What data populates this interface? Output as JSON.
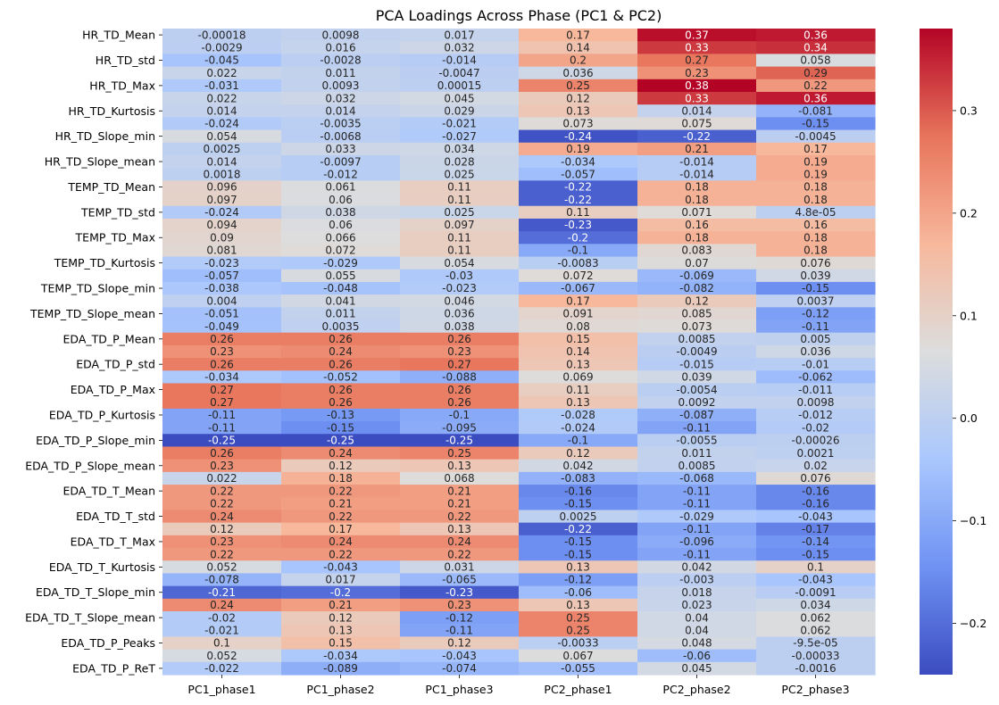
{
  "chart_data": {
    "type": "heatmap",
    "title": "PCA Loadings Across Phase (PC1 & PC2)",
    "xlabel": "",
    "ylabel": "",
    "columns": [
      "PC1_phase1",
      "PC1_phase2",
      "PC1_phase3",
      "PC2_phase1",
      "PC2_phase2",
      "PC2_phase3"
    ],
    "row_tick_labels": [
      "HR_TD_Mean",
      "HR_TD_std",
      "HR_TD_Max",
      "HR_TD_Kurtosis",
      "HR_TD_Slope_min",
      "HR_TD_Slope_mean",
      "TEMP_TD_Mean",
      "TEMP_TD_std",
      "TEMP_TD_Max",
      "TEMP_TD_Kurtosis",
      "TEMP_TD_Slope_min",
      "TEMP_TD_Slope_mean",
      "EDA_TD_P_Mean",
      "EDA_TD_P_std",
      "EDA_TD_P_Max",
      "EDA_TD_P_Kurtosis",
      "EDA_TD_P_Slope_min",
      "EDA_TD_P_Slope_mean",
      "EDA_TD_T_Mean",
      "EDA_TD_T_std",
      "EDA_TD_T_Max",
      "EDA_TD_T_Kurtosis",
      "EDA_TD_T_Slope_min",
      "EDA_TD_T_Slope_mean",
      "EDA_TD_P_Peaks",
      "EDA_TD_P_ReT"
    ],
    "values": [
      [
        -0.00018,
        0.0098,
        0.017,
        0.17,
        0.37,
        0.36
      ],
      [
        -0.0029,
        0.016,
        0.032,
        0.14,
        0.33,
        0.34
      ],
      [
        -0.045,
        -0.0028,
        -0.014,
        0.2,
        0.27,
        0.058
      ],
      [
        0.022,
        0.011,
        -0.0047,
        0.036,
        0.23,
        0.29
      ],
      [
        -0.031,
        0.0093,
        0.00015,
        0.25,
        0.38,
        0.22
      ],
      [
        0.022,
        0.032,
        0.045,
        0.12,
        0.33,
        0.36
      ],
      [
        0.014,
        0.014,
        0.029,
        0.13,
        0.014,
        -0.081
      ],
      [
        -0.024,
        -0.0035,
        -0.021,
        0.073,
        0.075,
        -0.15
      ],
      [
        0.054,
        -0.0068,
        -0.027,
        -0.24,
        -0.22,
        -0.0045
      ],
      [
        0.0025,
        0.033,
        0.034,
        0.19,
        0.21,
        0.17
      ],
      [
        0.014,
        -0.0097,
        0.028,
        -0.034,
        -0.014,
        0.19
      ],
      [
        0.0018,
        -0.012,
        0.025,
        -0.057,
        -0.014,
        0.19
      ],
      [
        0.096,
        0.061,
        0.11,
        -0.22,
        0.18,
        0.18
      ],
      [
        0.097,
        0.06,
        0.11,
        -0.22,
        0.18,
        0.18
      ],
      [
        -0.024,
        0.038,
        0.025,
        0.11,
        0.071,
        4.8e-05
      ],
      [
        0.094,
        0.06,
        0.097,
        -0.23,
        0.16,
        0.16
      ],
      [
        0.09,
        0.066,
        0.11,
        -0.2,
        0.18,
        0.18
      ],
      [
        0.081,
        0.072,
        0.11,
        -0.1,
        0.083,
        0.18
      ],
      [
        -0.023,
        -0.029,
        0.054,
        -0.0083,
        0.07,
        0.076
      ],
      [
        -0.057,
        0.055,
        -0.03,
        0.072,
        -0.069,
        0.039
      ],
      [
        -0.038,
        -0.048,
        -0.023,
        -0.067,
        -0.082,
        -0.15
      ],
      [
        0.004,
        0.041,
        0.046,
        0.17,
        0.12,
        0.0037
      ],
      [
        -0.051,
        0.011,
        0.036,
        0.091,
        0.085,
        -0.12
      ],
      [
        -0.049,
        0.0035,
        0.038,
        0.08,
        0.073,
        -0.11
      ],
      [
        0.26,
        0.26,
        0.26,
        0.15,
        0.0085,
        0.005
      ],
      [
        0.23,
        0.24,
        0.23,
        0.14,
        -0.0049,
        0.036
      ],
      [
        0.26,
        0.26,
        0.27,
        0.13,
        -0.015,
        -0.01
      ],
      [
        -0.034,
        -0.052,
        -0.088,
        0.069,
        0.039,
        -0.062
      ],
      [
        0.27,
        0.26,
        0.26,
        0.11,
        -0.0054,
        -0.011
      ],
      [
        0.27,
        0.26,
        0.26,
        0.13,
        0.0092,
        0.0098
      ],
      [
        -0.11,
        -0.13,
        -0.1,
        -0.028,
        -0.087,
        -0.012
      ],
      [
        -0.11,
        -0.15,
        -0.095,
        -0.024,
        -0.11,
        -0.02
      ],
      [
        -0.25,
        -0.25,
        -0.25,
        -0.1,
        -0.0055,
        -0.00026
      ],
      [
        0.26,
        0.24,
        0.25,
        0.12,
        0.011,
        0.0021
      ],
      [
        0.23,
        0.12,
        0.13,
        0.042,
        0.0085,
        0.02
      ],
      [
        0.022,
        0.18,
        0.068,
        -0.083,
        -0.068,
        0.076
      ],
      [
        0.22,
        0.22,
        0.21,
        -0.16,
        -0.11,
        -0.16
      ],
      [
        0.22,
        0.21,
        0.21,
        -0.15,
        -0.11,
        -0.16
      ],
      [
        0.24,
        0.22,
        0.22,
        0.0025,
        -0.029,
        -0.043
      ],
      [
        0.12,
        0.17,
        0.13,
        -0.22,
        -0.11,
        -0.17
      ],
      [
        0.23,
        0.24,
        0.24,
        -0.15,
        -0.096,
        -0.14
      ],
      [
        0.22,
        0.22,
        0.22,
        -0.15,
        -0.11,
        -0.15
      ],
      [
        0.052,
        -0.043,
        0.031,
        0.13,
        0.042,
        0.1
      ],
      [
        -0.078,
        0.017,
        -0.065,
        -0.12,
        -0.003,
        -0.043
      ],
      [
        -0.21,
        -0.2,
        -0.23,
        -0.06,
        0.018,
        -0.0091
      ],
      [
        0.24,
        0.21,
        0.23,
        0.13,
        0.023,
        0.034
      ],
      [
        -0.02,
        0.12,
        -0.12,
        0.25,
        0.04,
        0.062
      ],
      [
        -0.021,
        0.13,
        -0.11,
        0.25,
        0.04,
        0.062
      ],
      [
        0.1,
        0.15,
        0.12,
        -0.0033,
        0.048,
        -9.5e-05
      ],
      [
        0.052,
        -0.034,
        -0.043,
        0.067,
        -0.06,
        -0.00033
      ],
      [
        -0.022,
        -0.089,
        -0.074,
        -0.055,
        0.045,
        -0.0016
      ]
    ],
    "cell_labels": [
      [
        "-0.00018",
        "0.0098",
        "0.017",
        "0.17",
        "0.37",
        "0.36"
      ],
      [
        "-0.0029",
        "0.016",
        "0.032",
        "0.14",
        "0.33",
        "0.34"
      ],
      [
        "-0.045",
        "-0.0028",
        "-0.014",
        "0.2",
        "0.27",
        "0.058"
      ],
      [
        "0.022",
        "0.011",
        "-0.0047",
        "0.036",
        "0.23",
        "0.29"
      ],
      [
        "-0.031",
        "0.0093",
        "0.00015",
        "0.25",
        "0.38",
        "0.22"
      ],
      [
        "0.022",
        "0.032",
        "0.045",
        "0.12",
        "0.33",
        "0.36"
      ],
      [
        "0.014",
        "0.014",
        "0.029",
        "0.13",
        "0.014",
        "-0.081"
      ],
      [
        "-0.024",
        "-0.0035",
        "-0.021",
        "0.073",
        "0.075",
        "-0.15"
      ],
      [
        "0.054",
        "-0.0068",
        "-0.027",
        "-0.24",
        "-0.22",
        "-0.0045"
      ],
      [
        "0.0025",
        "0.033",
        "0.034",
        "0.19",
        "0.21",
        "0.17"
      ],
      [
        "0.014",
        "-0.0097",
        "0.028",
        "-0.034",
        "-0.014",
        "0.19"
      ],
      [
        "0.0018",
        "-0.012",
        "0.025",
        "-0.057",
        "-0.014",
        "0.19"
      ],
      [
        "0.096",
        "0.061",
        "0.11",
        "-0.22",
        "0.18",
        "0.18"
      ],
      [
        "0.097",
        "0.06",
        "0.11",
        "-0.22",
        "0.18",
        "0.18"
      ],
      [
        "-0.024",
        "0.038",
        "0.025",
        "0.11",
        "0.071",
        "4.8e-05"
      ],
      [
        "0.094",
        "0.06",
        "0.097",
        "-0.23",
        "0.16",
        "0.16"
      ],
      [
        "0.09",
        "0.066",
        "0.11",
        "-0.2",
        "0.18",
        "0.18"
      ],
      [
        "0.081",
        "0.072",
        "0.11",
        "-0.1",
        "0.083",
        "0.18"
      ],
      [
        "-0.023",
        "-0.029",
        "0.054",
        "-0.0083",
        "0.07",
        "0.076"
      ],
      [
        "-0.057",
        "0.055",
        "-0.03",
        "0.072",
        "-0.069",
        "0.039"
      ],
      [
        "-0.038",
        "-0.048",
        "-0.023",
        "-0.067",
        "-0.082",
        "-0.15"
      ],
      [
        "0.004",
        "0.041",
        "0.046",
        "0.17",
        "0.12",
        "0.0037"
      ],
      [
        "-0.051",
        "0.011",
        "0.036",
        "0.091",
        "0.085",
        "-0.12"
      ],
      [
        "-0.049",
        "0.0035",
        "0.038",
        "0.08",
        "0.073",
        "-0.11"
      ],
      [
        "0.26",
        "0.26",
        "0.26",
        "0.15",
        "0.0085",
        "0.005"
      ],
      [
        "0.23",
        "0.24",
        "0.23",
        "0.14",
        "-0.0049",
        "0.036"
      ],
      [
        "0.26",
        "0.26",
        "0.27",
        "0.13",
        "-0.015",
        "-0.01"
      ],
      [
        "-0.034",
        "-0.052",
        "-0.088",
        "0.069",
        "0.039",
        "-0.062"
      ],
      [
        "0.27",
        "0.26",
        "0.26",
        "0.11",
        "-0.0054",
        "-0.011"
      ],
      [
        "0.27",
        "0.26",
        "0.26",
        "0.13",
        "0.0092",
        "0.0098"
      ],
      [
        "-0.11",
        "-0.13",
        "-0.1",
        "-0.028",
        "-0.087",
        "-0.012"
      ],
      [
        "-0.11",
        "-0.15",
        "-0.095",
        "-0.024",
        "-0.11",
        "-0.02"
      ],
      [
        "-0.25",
        "-0.25",
        "-0.25",
        "-0.1",
        "-0.0055",
        "-0.00026"
      ],
      [
        "0.26",
        "0.24",
        "0.25",
        "0.12",
        "0.011",
        "0.0021"
      ],
      [
        "0.23",
        "0.12",
        "0.13",
        "0.042",
        "0.0085",
        "0.02"
      ],
      [
        "0.022",
        "0.18",
        "0.068",
        "-0.083",
        "-0.068",
        "0.076"
      ],
      [
        "0.22",
        "0.22",
        "0.21",
        "-0.16",
        "-0.11",
        "-0.16"
      ],
      [
        "0.22",
        "0.21",
        "0.21",
        "-0.15",
        "-0.11",
        "-0.16"
      ],
      [
        "0.24",
        "0.22",
        "0.22",
        "0.0025",
        "-0.029",
        "-0.043"
      ],
      [
        "0.12",
        "0.17",
        "0.13",
        "-0.22",
        "-0.11",
        "-0.17"
      ],
      [
        "0.23",
        "0.24",
        "0.24",
        "-0.15",
        "-0.096",
        "-0.14"
      ],
      [
        "0.22",
        "0.22",
        "0.22",
        "-0.15",
        "-0.11",
        "-0.15"
      ],
      [
        "0.052",
        "-0.043",
        "0.031",
        "0.13",
        "0.042",
        "0.1"
      ],
      [
        "-0.078",
        "0.017",
        "-0.065",
        "-0.12",
        "-0.003",
        "-0.043"
      ],
      [
        "-0.21",
        "-0.2",
        "-0.23",
        "-0.06",
        "0.018",
        "-0.0091"
      ],
      [
        "0.24",
        "0.21",
        "0.23",
        "0.13",
        "0.023",
        "0.034"
      ],
      [
        "-0.02",
        "0.12",
        "-0.12",
        "0.25",
        "0.04",
        "0.062"
      ],
      [
        "-0.021",
        "0.13",
        "-0.11",
        "0.25",
        "0.04",
        "0.062"
      ],
      [
        "0.1",
        "0.15",
        "0.12",
        "-0.0033",
        "0.048",
        "-9.5e-05"
      ],
      [
        "0.052",
        "-0.034",
        "-0.043",
        "0.067",
        "-0.06",
        "-0.00033"
      ],
      [
        "-0.022",
        "-0.089",
        "-0.074",
        "-0.055",
        "0.045",
        "-0.0016"
      ]
    ],
    "colormap": "coolwarm",
    "colormap_stops": [
      "#3b4cc0",
      "#6f92f3",
      "#aac7fd",
      "#dcdddd",
      "#f7b89c",
      "#e7745b",
      "#b40426"
    ],
    "vmin": -0.25,
    "vmax": 0.38,
    "colorbar_ticks": [
      -0.2,
      -0.1,
      0.0,
      0.1,
      0.2,
      0.3
    ],
    "colorbar_tick_labels": [
      "−0.2",
      "−0.1",
      "0.0",
      "0.1",
      "0.2",
      "0.3"
    ],
    "grid": false,
    "legend": "colorbar-right"
  }
}
